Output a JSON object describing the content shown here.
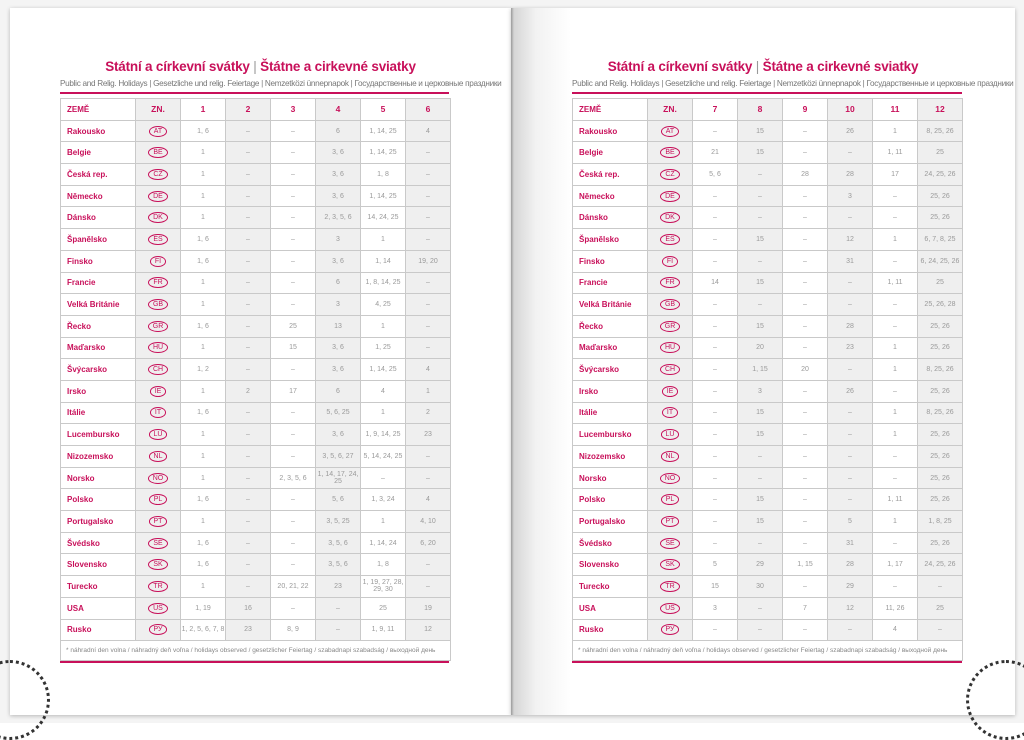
{
  "title_cz": "Státní a církevní svátky",
  "title_sk": "Štátne a cirkevné sviatky",
  "subtitle": "Public and Relig. Holidays | Gesetzliche und relig. Feiertage | Nemzetközi ünnepnapok | Государственные и церковные праздники",
  "brand_color": "#c8105a",
  "col_country": "ZEMĚ",
  "col_code": "ZN.",
  "footnote": "* náhradní den volna / náhradný deň voľna / holidays observed / gesetzlicher Feiertag / szabadnapi szabadság / выходной день",
  "left": {
    "months": [
      "1",
      "2",
      "3",
      "4",
      "5",
      "6"
    ],
    "rows": [
      [
        "Rakousko",
        "AT",
        "1, 6",
        "–",
        "–",
        "6",
        "1, 14, 25",
        "4"
      ],
      [
        "Belgie",
        "BE",
        "1",
        "–",
        "–",
        "3, 6",
        "1, 14, 25",
        "–"
      ],
      [
        "Česká rep.",
        "CZ",
        "1",
        "–",
        "–",
        "3, 6",
        "1, 8",
        "–"
      ],
      [
        "Německo",
        "DE",
        "1",
        "–",
        "–",
        "3, 6",
        "1, 14, 25",
        "–"
      ],
      [
        "Dánsko",
        "DK",
        "1",
        "–",
        "–",
        "2, 3, 5, 6",
        "14, 24, 25",
        "–"
      ],
      [
        "Španělsko",
        "ES",
        "1, 6",
        "–",
        "–",
        "3",
        "1",
        "–"
      ],
      [
        "Finsko",
        "FI",
        "1, 6",
        "–",
        "–",
        "3, 6",
        "1, 14",
        "19, 20"
      ],
      [
        "Francie",
        "FR",
        "1",
        "–",
        "–",
        "6",
        "1, 8, 14, 25",
        "–"
      ],
      [
        "Velká Británie",
        "GB",
        "1",
        "–",
        "–",
        "3",
        "4, 25",
        "–"
      ],
      [
        "Řecko",
        "GR",
        "1, 6",
        "–",
        "25",
        "13",
        "1",
        "–"
      ],
      [
        "Maďarsko",
        "HU",
        "1",
        "–",
        "15",
        "3, 6",
        "1, 25",
        "–"
      ],
      [
        "Švýcarsko",
        "CH",
        "1, 2",
        "–",
        "–",
        "3, 6",
        "1, 14, 25",
        "4"
      ],
      [
        "Irsko",
        "IE",
        "1",
        "2",
        "17",
        "6",
        "4",
        "1"
      ],
      [
        "Itálie",
        "IT",
        "1, 6",
        "–",
        "–",
        "5, 6, 25",
        "1",
        "2"
      ],
      [
        "Lucembursko",
        "LU",
        "1",
        "–",
        "–",
        "3, 6",
        "1, 9, 14, 25",
        "23"
      ],
      [
        "Nizozemsko",
        "NL",
        "1",
        "–",
        "–",
        "3, 5, 6, 27",
        "5, 14, 24, 25",
        "–"
      ],
      [
        "Norsko",
        "NO",
        "1",
        "–",
        "2, 3, 5, 6",
        "1, 14, 17, 24, 25",
        "–",
        "–"
      ],
      [
        "Polsko",
        "PL",
        "1, 6",
        "–",
        "–",
        "5, 6",
        "1, 3, 24",
        "4"
      ],
      [
        "Portugalsko",
        "PT",
        "1",
        "–",
        "–",
        "3, 5, 25",
        "1",
        "4, 10"
      ],
      [
        "Švédsko",
        "SE",
        "1, 6",
        "–",
        "–",
        "3, 5, 6",
        "1, 14, 24",
        "6, 20"
      ],
      [
        "Slovensko",
        "SK",
        "1, 6",
        "–",
        "–",
        "3, 5, 6",
        "1, 8",
        "–"
      ],
      [
        "Turecko",
        "TR",
        "1",
        "–",
        "20, 21, 22",
        "23",
        "1, 19, 27, 28, 29, 30",
        "–"
      ],
      [
        "USA",
        "US",
        "1, 19",
        "16",
        "–",
        "–",
        "25",
        "19"
      ],
      [
        "Rusko",
        "РУ",
        "1, 2, 5, 6, 7, 8",
        "23",
        "8, 9",
        "–",
        "1, 9, 11",
        "12"
      ]
    ]
  },
  "right": {
    "months": [
      "7",
      "8",
      "9",
      "10",
      "11",
      "12"
    ],
    "rows": [
      [
        "Rakousko",
        "AT",
        "–",
        "15",
        "–",
        "26",
        "1",
        "8, 25, 26"
      ],
      [
        "Belgie",
        "BE",
        "21",
        "15",
        "–",
        "–",
        "1, 11",
        "25"
      ],
      [
        "Česká rep.",
        "CZ",
        "5, 6",
        "–",
        "28",
        "28",
        "17",
        "24, 25, 26"
      ],
      [
        "Německo",
        "DE",
        "–",
        "–",
        "–",
        "3",
        "–",
        "25, 26"
      ],
      [
        "Dánsko",
        "DK",
        "–",
        "–",
        "–",
        "–",
        "–",
        "25, 26"
      ],
      [
        "Španělsko",
        "ES",
        "–",
        "15",
        "–",
        "12",
        "1",
        "6, 7, 8, 25"
      ],
      [
        "Finsko",
        "FI",
        "–",
        "–",
        "–",
        "31",
        "–",
        "6, 24, 25, 26"
      ],
      [
        "Francie",
        "FR",
        "14",
        "15",
        "–",
        "–",
        "1, 11",
        "25"
      ],
      [
        "Velká Británie",
        "GB",
        "–",
        "–",
        "–",
        "–",
        "–",
        "25, 26, 28"
      ],
      [
        "Řecko",
        "GR",
        "–",
        "15",
        "–",
        "28",
        "–",
        "25, 26"
      ],
      [
        "Maďarsko",
        "HU",
        "–",
        "20",
        "–",
        "23",
        "1",
        "25, 26"
      ],
      [
        "Švýcarsko",
        "CH",
        "–",
        "1, 15",
        "20",
        "–",
        "1",
        "8, 25, 26"
      ],
      [
        "Irsko",
        "IE",
        "–",
        "3",
        "–",
        "26",
        "–",
        "25, 26"
      ],
      [
        "Itálie",
        "IT",
        "–",
        "15",
        "–",
        "–",
        "1",
        "8, 25, 26"
      ],
      [
        "Lucembursko",
        "LU",
        "–",
        "15",
        "–",
        "–",
        "1",
        "25, 26"
      ],
      [
        "Nizozemsko",
        "NL",
        "–",
        "–",
        "–",
        "–",
        "–",
        "25, 26"
      ],
      [
        "Norsko",
        "NO",
        "–",
        "–",
        "–",
        "–",
        "–",
        "25, 26"
      ],
      [
        "Polsko",
        "PL",
        "–",
        "15",
        "–",
        "–",
        "1, 11",
        "25, 26"
      ],
      [
        "Portugalsko",
        "PT",
        "–",
        "15",
        "–",
        "5",
        "1",
        "1, 8, 25"
      ],
      [
        "Švédsko",
        "SE",
        "–",
        "–",
        "–",
        "31",
        "–",
        "25, 26"
      ],
      [
        "Slovensko",
        "SK",
        "5",
        "29",
        "1, 15",
        "28",
        "1, 17",
        "24, 25, 26"
      ],
      [
        "Turecko",
        "TR",
        "15",
        "30",
        "–",
        "29",
        "–",
        "–"
      ],
      [
        "USA",
        "US",
        "3",
        "–",
        "7",
        "12",
        "11, 26",
        "25"
      ],
      [
        "Rusko",
        "РУ",
        "–",
        "–",
        "–",
        "–",
        "4",
        "–"
      ]
    ]
  }
}
